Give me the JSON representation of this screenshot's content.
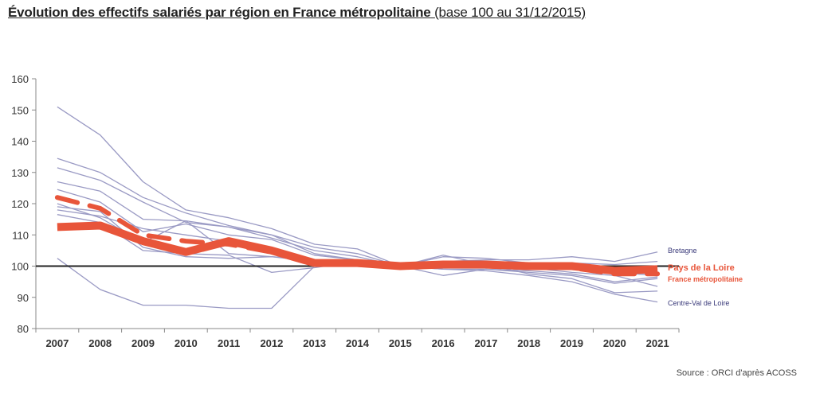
{
  "title": {
    "main": "Évolution des effectifs salariés par région en France métropolitaine",
    "sub": "(base 100 au 31/12/2015)"
  },
  "source": "Source : ORCI d'après ACOSS",
  "chart_data": {
    "type": "line",
    "x": [
      "2007",
      "2008",
      "2009",
      "2010",
      "2011",
      "2012",
      "2013",
      "2014",
      "2015",
      "2016",
      "2017",
      "2018",
      "2019",
      "2020",
      "2021"
    ],
    "ylim": [
      80,
      160
    ],
    "yticks": [
      80,
      90,
      100,
      110,
      120,
      130,
      140,
      150,
      160
    ],
    "reference_line": 100,
    "grid": false,
    "labels": {
      "bretagne": "Bretagne",
      "pdl": "Pays de la Loire",
      "france": "France métropolitaine",
      "cvl": "Centre-Val de Loire"
    },
    "colors": {
      "regions": "#9a9ac4",
      "highlight": "#e8553a",
      "reference": "#222222"
    },
    "series": [
      {
        "name": "Pays de la Loire",
        "role": "highlight-solid",
        "values": [
          112.5,
          113,
          108,
          104.5,
          108,
          105,
          101,
          101,
          100,
          100.5,
          100.5,
          100,
          100,
          98.5,
          99
        ]
      },
      {
        "name": "France métropolitaine",
        "role": "highlight-dashed",
        "values": [
          122,
          118.5,
          110,
          108,
          107,
          104.5,
          100.5,
          100.5,
          100,
          100.5,
          100,
          99.5,
          99.5,
          97.5,
          97.5
        ]
      },
      {
        "name": "Bretagne",
        "role": "region",
        "values": [
          118,
          116,
          112,
          110,
          108,
          105,
          102,
          101,
          100,
          101.5,
          102,
          102,
          103,
          101.5,
          104.5
        ]
      },
      {
        "name": "Centre-Val de Loire",
        "role": "region",
        "values": [
          102.5,
          92.5,
          87.5,
          87.5,
          86.5,
          86.5,
          100,
          101,
          100,
          99,
          98.5,
          97,
          95,
          91,
          88.5
        ]
      },
      {
        "values": [
          151,
          142,
          127,
          118,
          115.5,
          112,
          107,
          105.5,
          100,
          103,
          102.5,
          101,
          101,
          100.5,
          101.5
        ]
      },
      {
        "values": [
          134.5,
          130,
          122,
          117,
          113,
          110,
          106,
          104,
          100,
          101,
          101,
          101,
          101,
          99,
          100
        ]
      },
      {
        "values": [
          131.5,
          127.5,
          120.5,
          114,
          112.5,
          109,
          105,
          103,
          100,
          100,
          99.5,
          99,
          99.5,
          97.5,
          98.5
        ]
      },
      {
        "values": [
          127,
          124,
          115,
          114.5,
          112.5,
          110,
          104,
          102,
          100,
          99,
          99,
          98,
          97,
          94.5,
          96
        ]
      },
      {
        "values": [
          124.5,
          120.5,
          111,
          113.5,
          110,
          108.5,
          103.5,
          102,
          100,
          101,
          100,
          99,
          99.5,
          98,
          97
        ]
      },
      {
        "values": [
          119,
          117.5,
          106,
          103,
          102.5,
          103,
          102,
          101.5,
          100,
          97,
          99,
          98.5,
          97.5,
          95,
          96.5
        ]
      },
      {
        "values": [
          116.5,
          114,
          105,
          104,
          103.5,
          98,
          99.5,
          101.5,
          100,
          103.5,
          100.5,
          97.5,
          96,
          91.5,
          92
        ]
      },
      {
        "values": [
          120,
          115.5,
          107.5,
          114.5,
          104,
          103,
          101.5,
          101,
          100,
          100,
          100,
          99.5,
          98,
          97,
          93.5
        ]
      }
    ]
  }
}
